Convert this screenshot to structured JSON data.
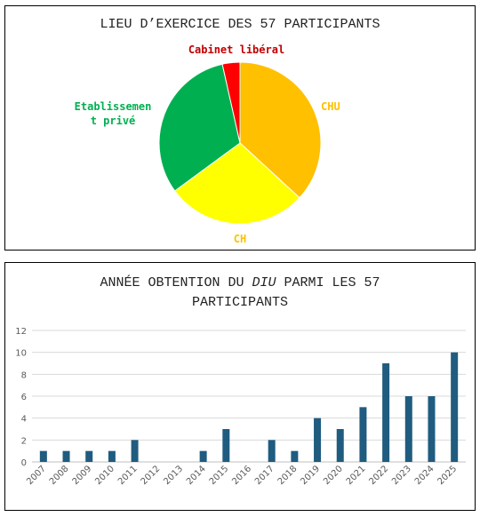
{
  "chart_data": [
    {
      "type": "pie",
      "title": "LIEU D’EXERCICE DES 57 PARTICIPANTS",
      "slices": [
        {
          "label": "CHU",
          "value": 21,
          "color": "#FFC000"
        },
        {
          "label": "CH",
          "value": 16,
          "color": "#FFFF00"
        },
        {
          "label": "Etablissement privé",
          "label_lines": [
            "Etablissemen",
            "t privé"
          ],
          "value": 18,
          "color": "#00B050"
        },
        {
          "label": "Cabinet libéral",
          "value": 2,
          "color": "#FF0000"
        }
      ],
      "label_colors": {
        "CHU": "#FFC000",
        "CH": "#FFC000",
        "Etablissement privé": "#00B050",
        "Cabinet libéral": "#C00000"
      }
    },
    {
      "type": "bar",
      "title_parts": {
        "before": "ANNÉE OBTENTION DU ",
        "italic": "DIU",
        "after": " PARMI LES 57",
        "line2": "PARTICIPANTS"
      },
      "categories": [
        "2007",
        "2008",
        "2009",
        "2010",
        "2011",
        "2012",
        "2013",
        "2014",
        "2015",
        "2016",
        "2017",
        "2018",
        "2019",
        "2020",
        "2021",
        "2022",
        "2023",
        "2024",
        "2025"
      ],
      "values": [
        1,
        1,
        1,
        1,
        2,
        0,
        0,
        1,
        3,
        0,
        2,
        1,
        4,
        3,
        5,
        9,
        6,
        6,
        10
      ],
      "ylim": [
        0,
        12
      ],
      "yticks": [
        0,
        2,
        4,
        6,
        8,
        10,
        12
      ],
      "grid": true,
      "bar_color": "#1F5C7F"
    }
  ]
}
